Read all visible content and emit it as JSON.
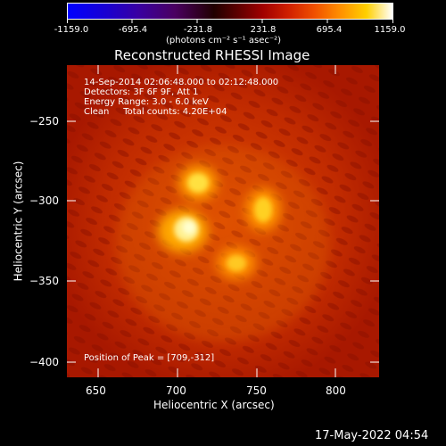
{
  "colorbar": {
    "ticks": [
      "-1159.0",
      "-695.4",
      "-231.8",
      "231.8",
      "695.4",
      "1159.0"
    ],
    "unit_label": "(photons cm⁻² s⁻¹ asec⁻²)"
  },
  "plot": {
    "title": "Reconstructed RHESSI Image",
    "xlabel": "Heliocentric X (arcsec)",
    "ylabel": "Heliocentric Y (arcsec)",
    "xticks": [
      "650",
      "700",
      "750",
      "800"
    ],
    "yticks": [
      "−250",
      "−300",
      "−350",
      "−400"
    ]
  },
  "annotations": {
    "time_range": "14-Sep-2014 02:06:48.000 to 02:12:48.000",
    "detectors": "Detectors: 3F 6F 9F, Att 1",
    "energy": "Energy Range: 3.0 - 6.0 keV",
    "clean": "Clean     Total counts: 4.20E+04",
    "peak": "Position of Peak = [709,-312]"
  },
  "footer": {
    "timestamp": "17-May-2022 04:54"
  },
  "colors": {
    "background": "#000000",
    "image_base": "#b81f00",
    "image_hot": "#ffffc0"
  }
}
